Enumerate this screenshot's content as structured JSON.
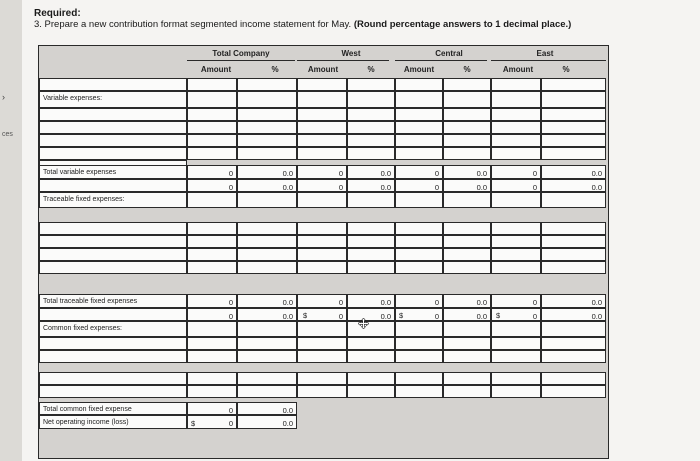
{
  "required_label": "Required:",
  "instruction": {
    "text": "3. Prepare a new contribution format segmented income statement for May. ",
    "bold": "(Round percentage answers to 1 decimal place.)"
  },
  "edge_label": "ces",
  "header": {
    "segments": [
      "Total Company",
      "West",
      "Central",
      "East"
    ],
    "amount_label": "Amount",
    "pct_label": "%"
  },
  "rows": {
    "variable_expenses": "Variable expenses:",
    "total_variable_expenses": "Total variable expenses",
    "traceable_fixed_expenses": "Traceable fixed expenses:",
    "total_traceable_fixed_expenses": "Total traceable fixed expenses",
    "common_fixed_expenses": "Common fixed expenses:",
    "total_common_fixed_expense": "Total common fixed expense",
    "net_operating_income": "Net operating income (loss)"
  },
  "values": {
    "zero": "0",
    "zero_pct": "0.0",
    "dollar": "$"
  }
}
